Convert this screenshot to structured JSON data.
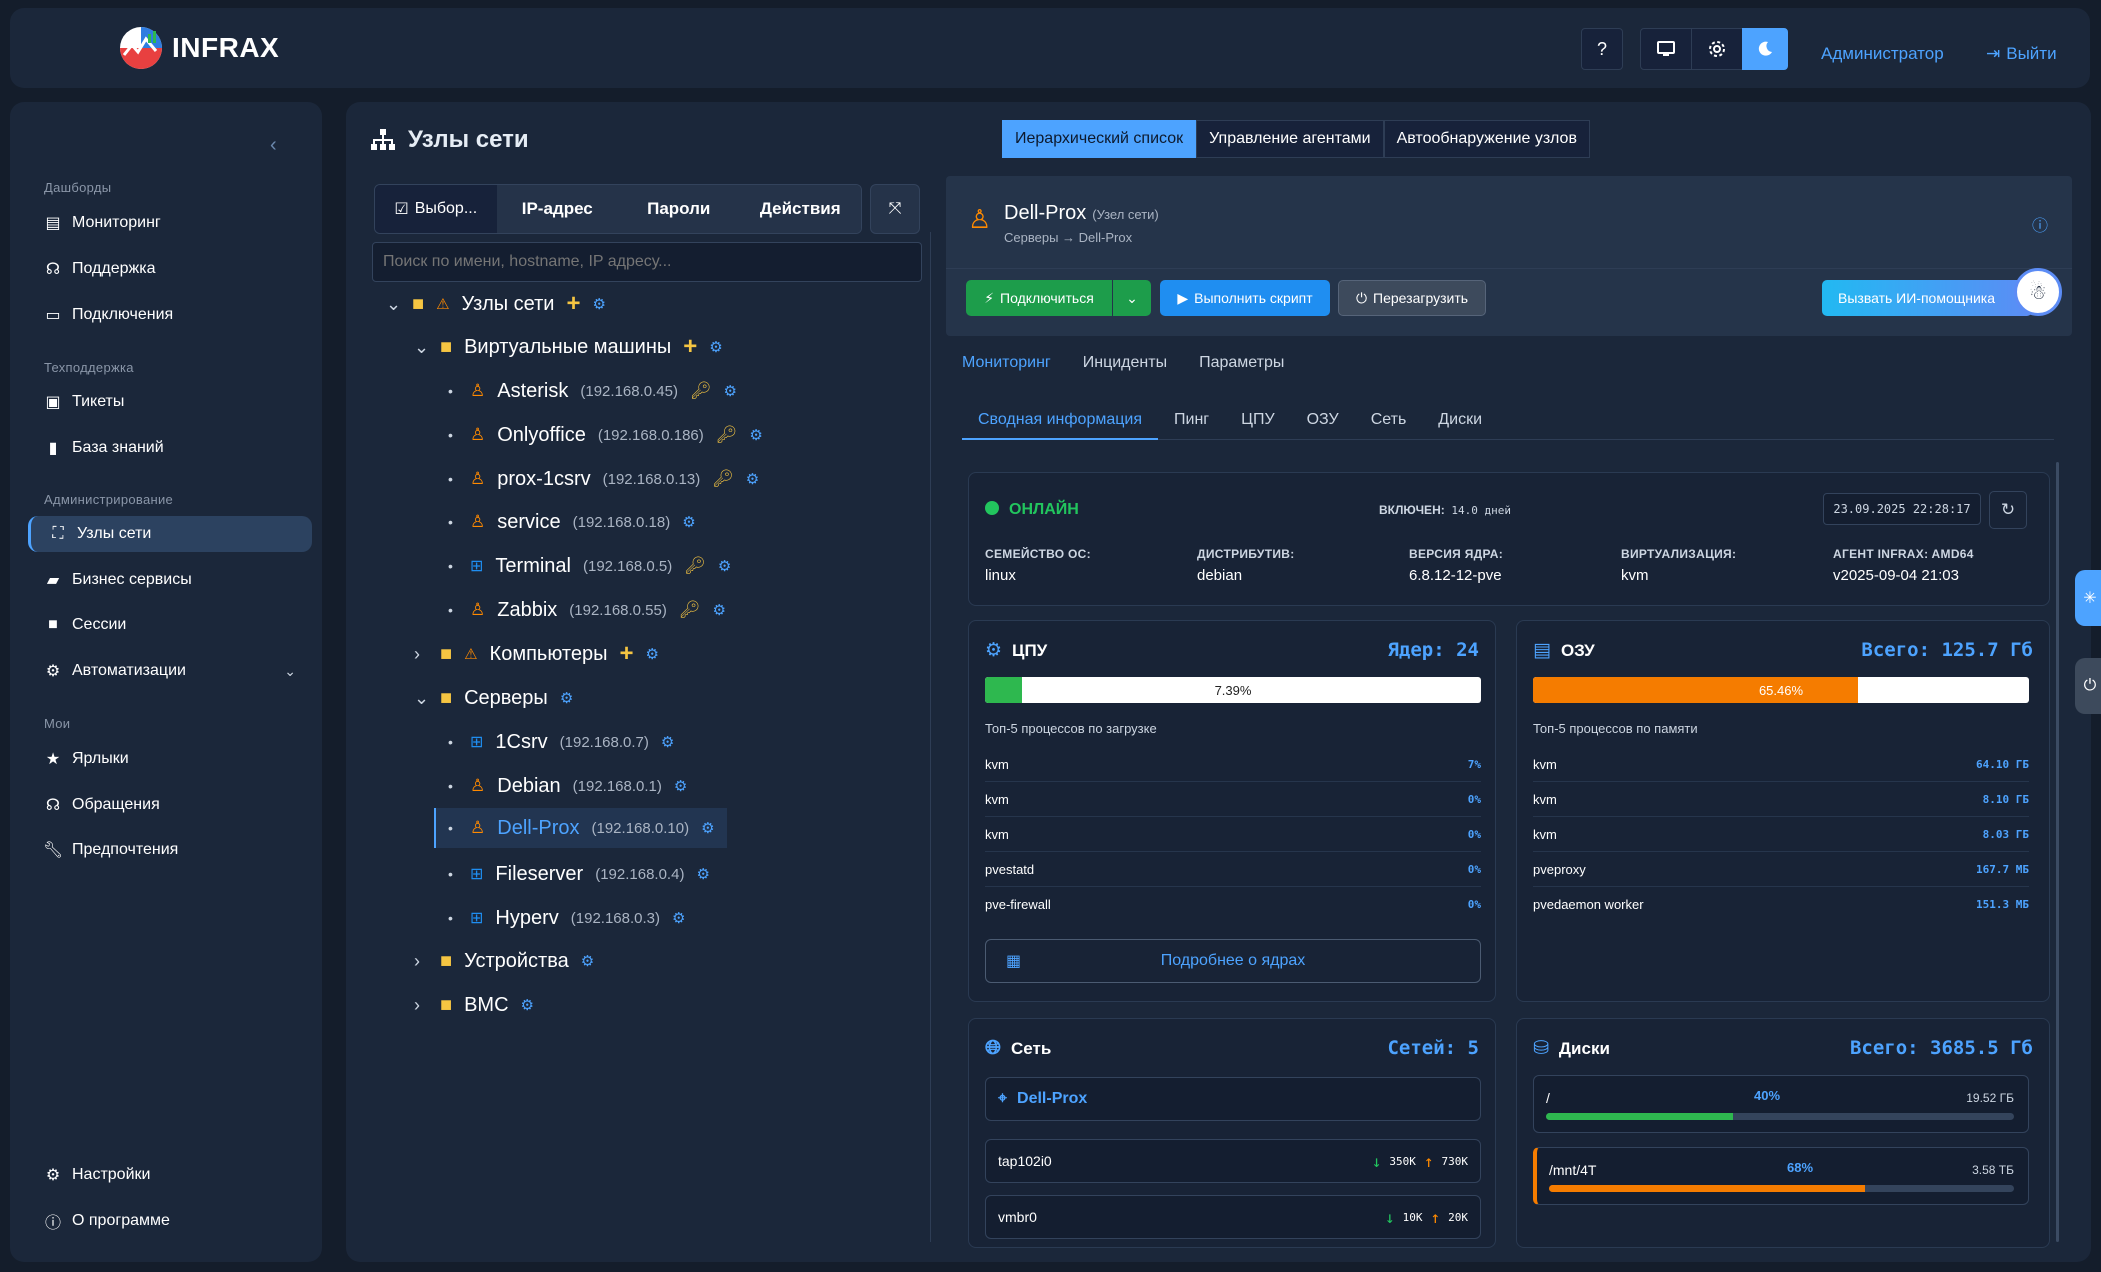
{
  "app": {
    "name": "INFRAX"
  },
  "header": {
    "help_label": "?",
    "user_label": "Администратор",
    "logout_label": "Выйти"
  },
  "sidebar": {
    "sections": [
      {
        "title": "Дашборды",
        "items": [
          {
            "label": "Мониторинг",
            "icon": "server-icon"
          },
          {
            "label": "Поддержка",
            "icon": "headset-icon"
          },
          {
            "label": "Подключения",
            "icon": "monitor-icon"
          }
        ]
      },
      {
        "title": "Техподдержка",
        "items": [
          {
            "label": "Тикеты",
            "icon": "ticket-icon"
          },
          {
            "label": "База знаний",
            "icon": "book-icon"
          }
        ]
      },
      {
        "title": "Администрирование",
        "items": [
          {
            "label": "Узлы сети",
            "icon": "sitemap-icon",
            "active": true
          },
          {
            "label": "Бизнес сервисы",
            "icon": "briefcase-icon"
          },
          {
            "label": "Сессии",
            "icon": "video-icon"
          },
          {
            "label": "Автоматизации",
            "icon": "robot-icon"
          }
        ]
      },
      {
        "title": "Мои",
        "items": [
          {
            "label": "Ярлыки",
            "icon": "star-icon"
          },
          {
            "label": "Обращения",
            "icon": "headphones-icon"
          },
          {
            "label": "Предпочтения",
            "icon": "wrench-icon"
          }
        ]
      }
    ],
    "footer": [
      {
        "label": "Настройки",
        "icon": "gears-icon"
      },
      {
        "label": "О программе",
        "icon": "info-icon"
      }
    ]
  },
  "page": {
    "title": "Узлы сети",
    "view_tabs": [
      "Иерархический список",
      "Управление агентами",
      "Автообнаружение узлов"
    ],
    "left_tabs": [
      "Выбор...",
      "IP-адрес",
      "Пароли",
      "Действия"
    ],
    "search_placeholder": "Поиск по имени, hostname, IP адресу..."
  },
  "tree": {
    "root": "Узлы сети",
    "vm_group": "Виртуальные машины",
    "vms": [
      {
        "name": "Asterisk",
        "ip": "(192.168.0.45)",
        "os": "linux",
        "key": true
      },
      {
        "name": "Onlyoffice",
        "ip": "(192.168.0.186)",
        "os": "linux",
        "key": true
      },
      {
        "name": "prox-1csrv",
        "ip": "(192.168.0.13)",
        "os": "linux",
        "key": true
      },
      {
        "name": "service",
        "ip": "(192.168.0.18)",
        "os": "linux",
        "key": false
      },
      {
        "name": "Terminal",
        "ip": "(192.168.0.5)",
        "os": "windows",
        "key": true
      },
      {
        "name": "Zabbix",
        "ip": "(192.168.0.55)",
        "os": "linux",
        "key": true
      }
    ],
    "computers_group": "Компьютеры",
    "servers_group": "Серверы",
    "servers": [
      {
        "name": "1Csrv",
        "ip": "(192.168.0.7)",
        "os": "windows"
      },
      {
        "name": "Debian",
        "ip": "(192.168.0.1)",
        "os": "linux"
      },
      {
        "name": "Dell-Prox",
        "ip": "(192.168.0.10)",
        "os": "linux",
        "selected": true
      },
      {
        "name": "Fileserver",
        "ip": "(192.168.0.4)",
        "os": "windows"
      },
      {
        "name": "Hyperv",
        "ip": "(192.168.0.3)",
        "os": "windows"
      }
    ],
    "devices_group": "Устройства",
    "bmc_group": "BMC"
  },
  "node": {
    "name": "Dell-Prox",
    "type": "(Узел сети)",
    "breadcrumb": "Серверы → Dell-Prox",
    "connect_label": "Подключиться",
    "script_label": "Выполнить скрипт",
    "reboot_label": "Перезагрузить",
    "ai_label": "Вызвать ИИ-помощника",
    "tabs": [
      "Мониторинг",
      "Инциденты",
      "Параметры"
    ],
    "sub_tabs": [
      "Сводная информация",
      "Пинг",
      "ЦПУ",
      "ОЗУ",
      "Сеть",
      "Диски"
    ]
  },
  "status": {
    "state": "ОНЛАЙН",
    "uptime_label": "ВКЛЮЧЕН:",
    "uptime_value": "14.0 дней",
    "timestamp": "23.09.2025 22:28:17",
    "fields": [
      {
        "label": "СЕМЕЙСТВО ОС:",
        "value": "linux"
      },
      {
        "label": "ДИСТРИБУТИВ:",
        "value": "debian"
      },
      {
        "label": "ВЕРСИЯ ЯДРА:",
        "value": "6.8.12-12-pve"
      },
      {
        "label": "ВИРТУАЛИЗАЦИЯ:",
        "value": "kvm"
      },
      {
        "label": "АГЕНТ INFRAX: AMD64",
        "value": "v2025-09-04 21:03"
      }
    ]
  },
  "cpu": {
    "title": "ЦПУ",
    "cores_label": "Ядер: 24",
    "percent_label": "7.39%",
    "percent": 7.39,
    "fill_color": "#2eb84f",
    "procs_title": "Топ-5 процессов по загрузке",
    "procs": [
      {
        "name": "kvm",
        "value": "7%"
      },
      {
        "name": "kvm",
        "value": "0%"
      },
      {
        "name": "kvm",
        "value": "0%"
      },
      {
        "name": "pvestatd",
        "value": "0%"
      },
      {
        "name": "pve-firewall",
        "value": "0%"
      }
    ],
    "more_label": "Подробнее о ядрах"
  },
  "ram": {
    "title": "ОЗУ",
    "total_label": "Всего: 125.7 Гб",
    "percent_label": "65.46%",
    "percent": 65.46,
    "fill_color": "#f57c00",
    "procs_title": "Топ-5 процессов по памяти",
    "procs": [
      {
        "name": "kvm",
        "value": "64.10 ГБ"
      },
      {
        "name": "kvm",
        "value": "8.10 ГБ"
      },
      {
        "name": "kvm",
        "value": "8.03 ГБ"
      },
      {
        "name": "pveproxy",
        "value": "167.7 МБ"
      },
      {
        "name": "pvedaemon worker",
        "value": "151.3 МБ"
      }
    ]
  },
  "network": {
    "title": "Сеть",
    "count_label": "Сетей: 5",
    "host": "Dell-Prox",
    "ifaces": [
      {
        "name": "tap102i0",
        "down": "350K",
        "up": "730K"
      },
      {
        "name": "vmbr0",
        "down": "10K",
        "up": "20K"
      }
    ]
  },
  "disks": {
    "title": "Диски",
    "total_label": "Всего: 3685.5 Гб",
    "items": [
      {
        "mount": "/",
        "percent_label": "40%",
        "percent": 40,
        "size": "19.52 ГБ",
        "color": "#2eb84f"
      },
      {
        "mount": "/mnt/4T",
        "percent_label": "68%",
        "percent": 68,
        "size": "3.58 ТБ",
        "color": "#f57c00"
      }
    ]
  }
}
